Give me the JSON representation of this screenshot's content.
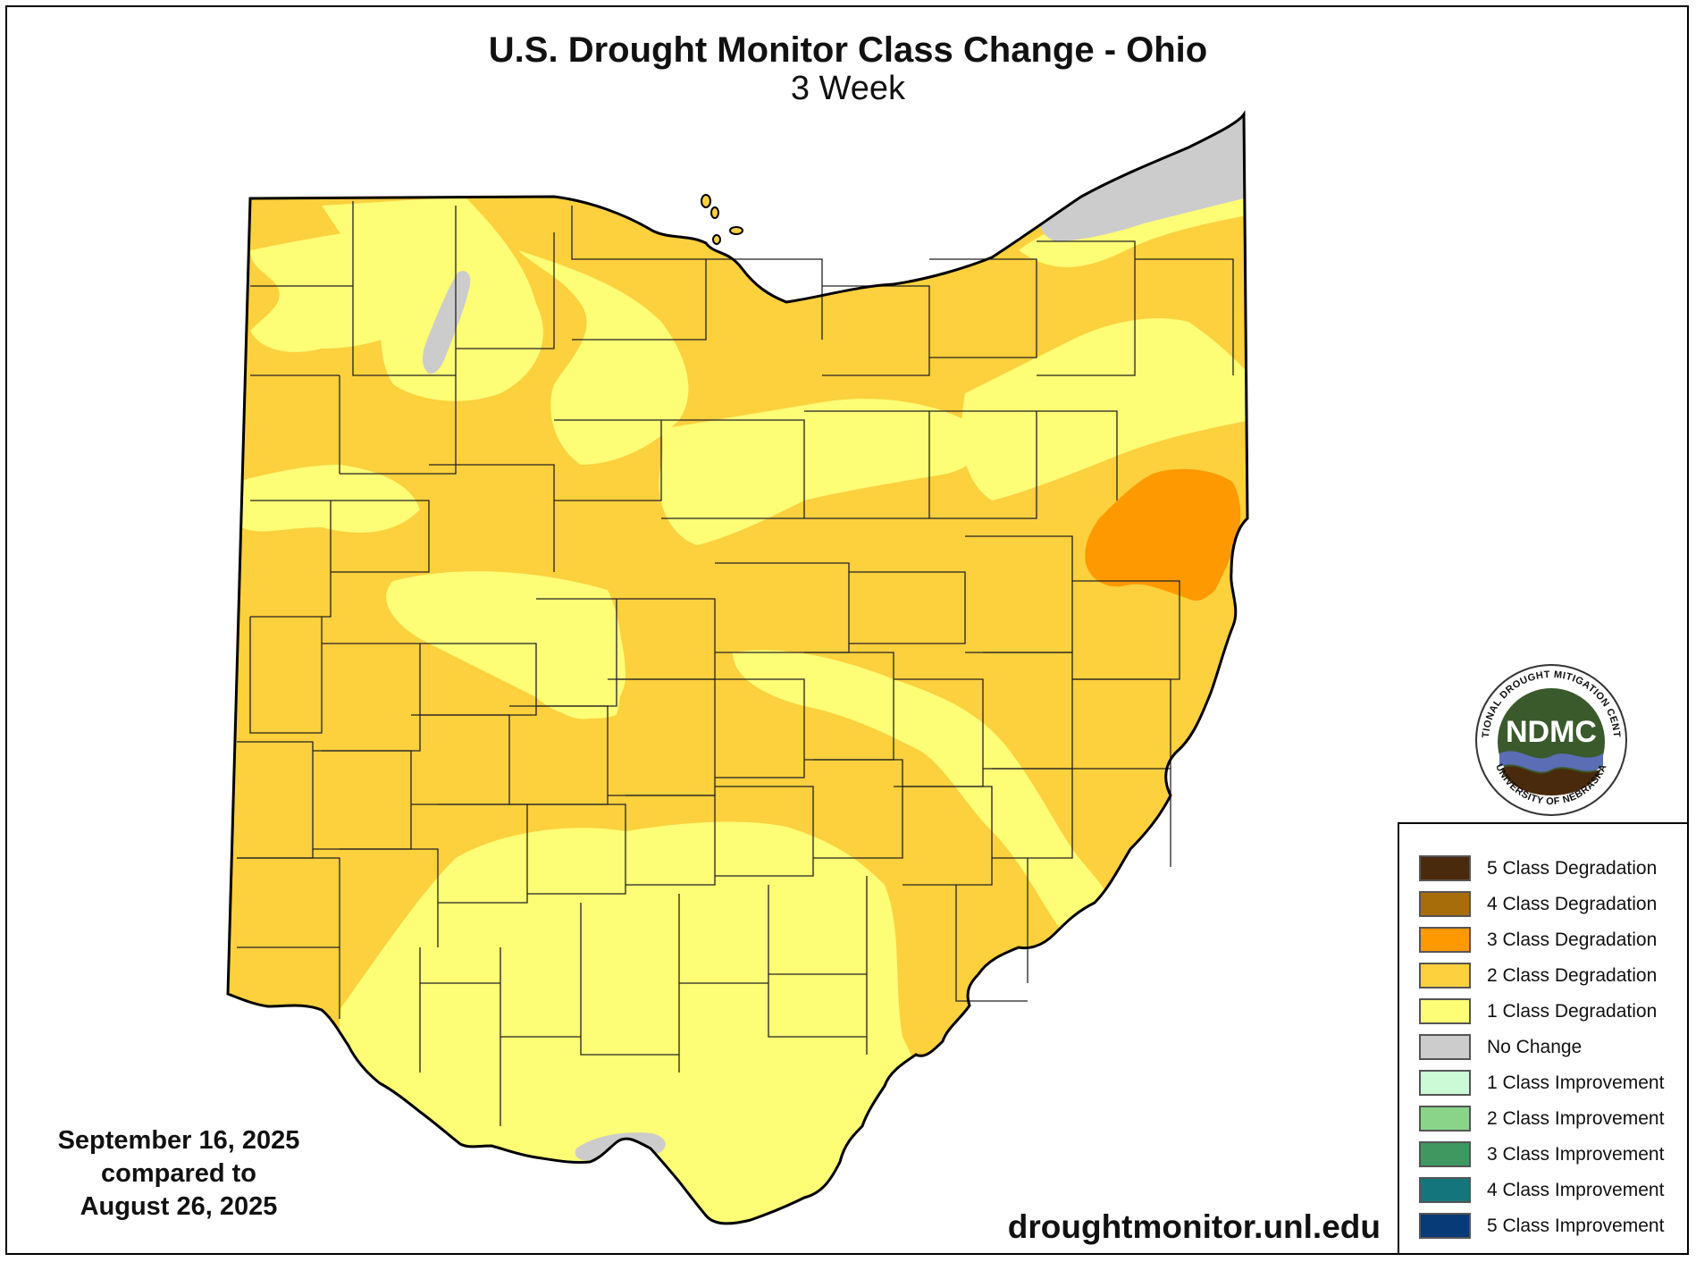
{
  "title": "U.S. Drought Monitor Class Change - Ohio",
  "subtitle": "3 Week",
  "date_block": {
    "line1": "September 16, 2025",
    "line2": "compared to",
    "line3": "August 26, 2025"
  },
  "website": "droughtmonitor.unl.edu",
  "logo": {
    "abbrev": "NDMC",
    "ring_top": "NATIONAL DROUGHT MITIGATION CENTER",
    "ring_bottom": "UNIVERSITY OF NEBRASKA"
  },
  "legend": [
    {
      "label": "5 Class Degradation",
      "color": "#4a2a0c"
    },
    {
      "label": "4 Class Degradation",
      "color": "#a86d0b"
    },
    {
      "label": "3 Class Degradation",
      "color": "#fe9902"
    },
    {
      "label": "2 Class Degradation",
      "color": "#fdd03d"
    },
    {
      "label": "1 Class Degradation",
      "color": "#fdfd76"
    },
    {
      "label": "No Change",
      "color": "#cccccc"
    },
    {
      "label": "1 Class Improvement",
      "color": "#ccf9d6"
    },
    {
      "label": "2 Class Improvement",
      "color": "#89d488"
    },
    {
      "label": "3 Class Improvement",
      "color": "#3e9860"
    },
    {
      "label": "4 Class Improvement",
      "color": "#14767c"
    },
    {
      "label": "5 Class Improvement",
      "color": "#083a78"
    }
  ],
  "map_colors": {
    "one_class": "#fdfd76",
    "two_class": "#fdd03d",
    "three_class": "#fe9902",
    "no_change": "#cccccc",
    "county_lines": "#222222",
    "border": "#000000"
  }
}
